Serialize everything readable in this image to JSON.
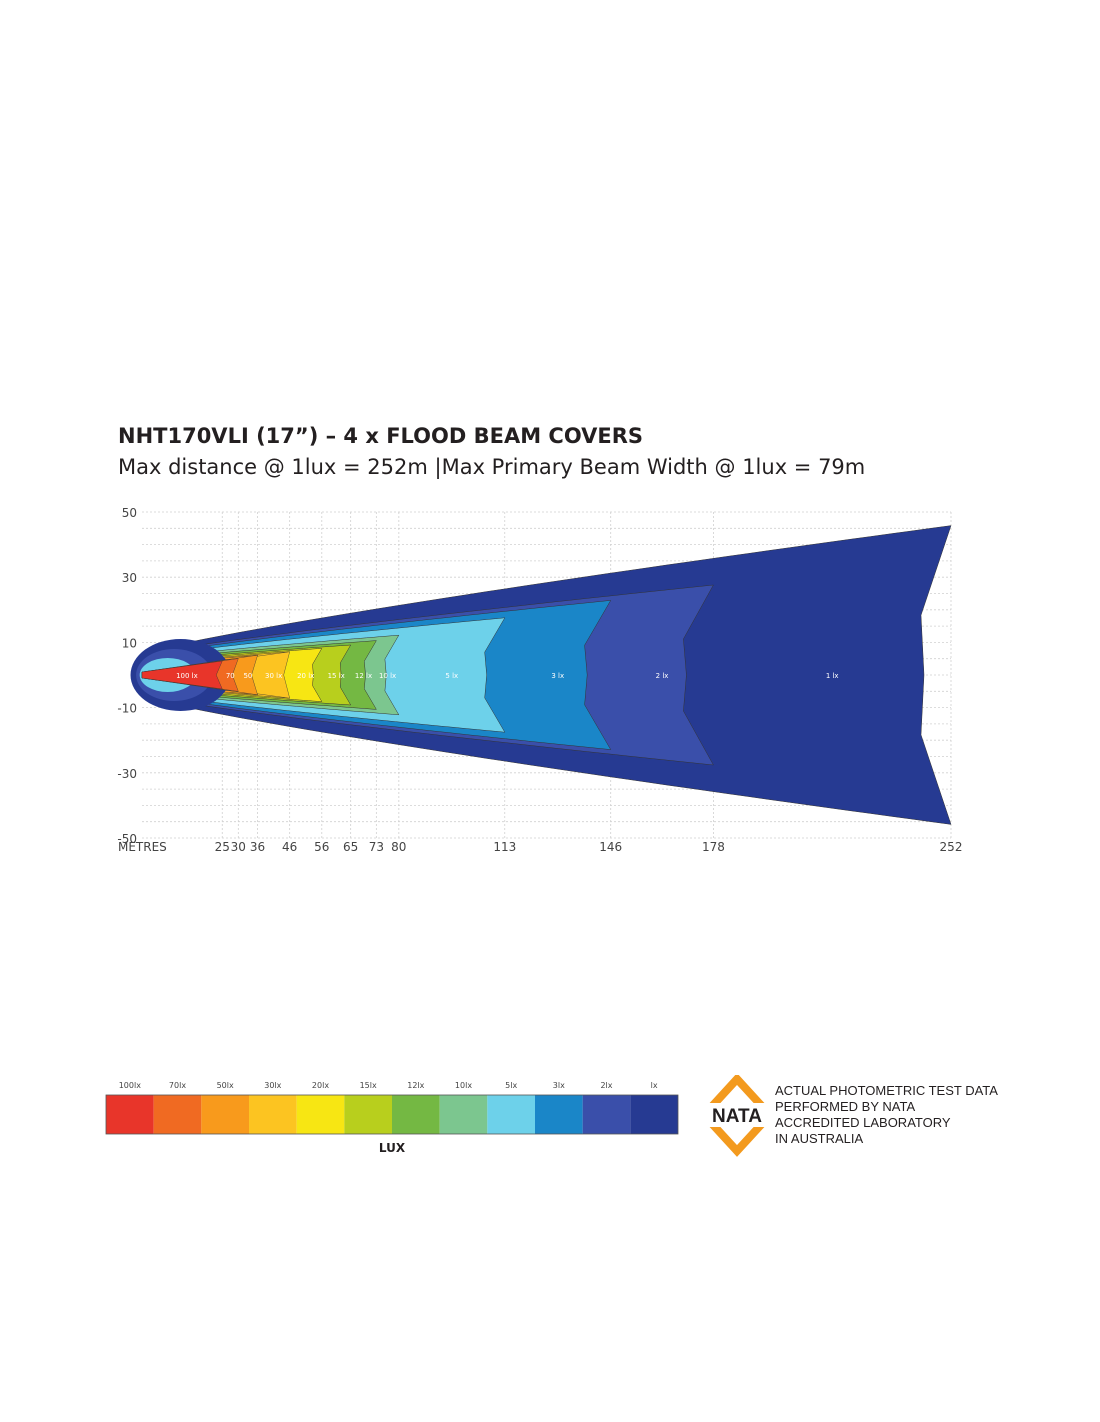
{
  "title": "NHT170VLI (17”) – 4 x FLOOD BEAM COVERS",
  "subtitle": "Max distance @ 1lux = 252m  |Max Primary  Beam Width @ 1lux = 79m",
  "chart_data": {
    "type": "heatmap",
    "xlabel": "METRES",
    "x_ticks": [
      25,
      30,
      36,
      46,
      56,
      65,
      73,
      80,
      113,
      146,
      178,
      252
    ],
    "xlim": [
      0,
      252
    ],
    "y_ticks": [
      50,
      30,
      10,
      -10,
      -30,
      -50
    ],
    "ylim": [
      -50,
      50
    ],
    "grid": true,
    "zones": [
      {
        "label": "100 lx",
        "lux": 100,
        "color": "#e8352a",
        "reach_m": 25
      },
      {
        "label": "70",
        "lux": 70,
        "color": "#f06a22",
        "reach_m": 30
      },
      {
        "label": "50",
        "lux": 50,
        "color": "#f89a1c",
        "reach_m": 36
      },
      {
        "label": "30 lx",
        "lux": 30,
        "color": "#fcc421",
        "reach_m": 46
      },
      {
        "label": "20 lx",
        "lux": 20,
        "color": "#f7e613",
        "reach_m": 56
      },
      {
        "label": "15 lx",
        "lux": 15,
        "color": "#b8cf1d",
        "reach_m": 65
      },
      {
        "label": "12 lx",
        "lux": 12,
        "color": "#74b843",
        "reach_m": 73
      },
      {
        "label": "10 lx",
        "lux": 10,
        "color": "#7cc68f",
        "reach_m": 80
      },
      {
        "label": "5 lx",
        "lux": 5,
        "color": "#6dd1ea",
        "reach_m": 113
      },
      {
        "label": "3 lx",
        "lux": 3,
        "color": "#1a86c8",
        "reach_m": 146
      },
      {
        "label": "2 lx",
        "lux": 2,
        "color": "#3a4faa",
        "reach_m": 178
      },
      {
        "label": "1 lx",
        "lux": 1,
        "color": "#263a92",
        "reach_m": 252
      }
    ]
  },
  "legend": {
    "labels": [
      "100lx",
      "70lx",
      "50lx",
      "30lx",
      "20lx",
      "15lx",
      "12lx",
      "10lx",
      "5lx",
      "3lx",
      "2lx",
      "lx"
    ],
    "colors": [
      "#e8352a",
      "#f06a22",
      "#f89a1c",
      "#fcc421",
      "#f7e613",
      "#b8cf1d",
      "#74b843",
      "#7cc68f",
      "#6dd1ea",
      "#1a86c8",
      "#3a4faa",
      "#263a92"
    ],
    "caption": "LUX"
  },
  "nata": {
    "logo_text": "NATA",
    "logo_color": "#f39a1e",
    "lines": [
      "ACTUAL PHOTOMETRIC TEST DATA",
      "PERFORMED BY NATA",
      "ACCREDITED LABORATORY",
      "IN AUSTRALIA"
    ]
  }
}
